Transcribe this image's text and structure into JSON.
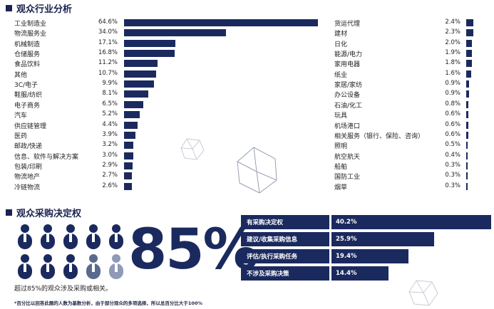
{
  "section1": {
    "title": "观众行业分析"
  },
  "section2": {
    "title": "观众采购决定权"
  },
  "chart_data": [
    {
      "type": "bar",
      "orientation": "horizontal",
      "title": "观众行业分析 (left)",
      "categories": [
        "工业制造业",
        "物流服务业",
        "机械制造",
        "仓储服务",
        "食品饮料",
        "其他",
        "3C/电子",
        "鞋服/纺织",
        "电子商务",
        "汽车",
        "供应链管理",
        "医药",
        "邮政/快递",
        "信息、软件与解决方案",
        "包装/印刷",
        "物流地产",
        "冷链物流"
      ],
      "labels": [
        "64.6%",
        "34.0%",
        "17.1%",
        "16.8%",
        "11.2%",
        "10.7%",
        "9.9%",
        "8.1%",
        "6.5%",
        "5.2%",
        "4.4%",
        "3.9%",
        "3.2%",
        "3.0%",
        "2.9%",
        "2.7%",
        "2.6%"
      ],
      "values": [
        64.6,
        34.0,
        17.1,
        16.8,
        11.2,
        10.7,
        9.9,
        8.1,
        6.5,
        5.2,
        4.4,
        3.9,
        3.2,
        3.0,
        2.9,
        2.7,
        2.6
      ]
    },
    {
      "type": "bar",
      "orientation": "horizontal",
      "title": "观众行业分析 (right)",
      "categories": [
        "货运代理",
        "建材",
        "日化",
        "能源/电力",
        "家用电器",
        "纸业",
        "家居/家纺",
        "办公设备",
        "石油/化工",
        "玩具",
        "机场港口",
        "相关服务（银行、保险、咨询）",
        "照明",
        "航空航天",
        "船舶",
        "国防工业",
        "烟草"
      ],
      "labels": [
        "2.4%",
        "2.3%",
        "2.0%",
        "1.9%",
        "1.8%",
        "1.6%",
        "0.9%",
        "0.9%",
        "0.8%",
        "0.6%",
        "0.6%",
        "0.6%",
        "0.5%",
        "0.4%",
        "0.3%",
        "0.3%",
        "0.3%"
      ],
      "values": [
        2.4,
        2.3,
        2.0,
        1.9,
        1.8,
        1.6,
        0.9,
        0.9,
        0.8,
        0.6,
        0.6,
        0.6,
        0.5,
        0.4,
        0.3,
        0.3,
        0.3
      ]
    },
    {
      "type": "bar",
      "orientation": "horizontal",
      "title": "观众采购决定权",
      "categories": [
        "有采购决定权",
        "建议/收集采购信息",
        "评估/执行采购任务",
        "不涉及采购决策"
      ],
      "labels": [
        "40.2%",
        "25.9%",
        "19.4%",
        "14.4%"
      ],
      "values": [
        40.2,
        25.9,
        19.4,
        14.4
      ]
    }
  ],
  "stat": {
    "big": "85%",
    "caption": "超过85%的观众涉及采购或相关。"
  },
  "people": {
    "total": 10,
    "highlighted": 8,
    "partial": 1,
    "light": 1
  },
  "footnote": "*百分比以回答此题的人数为基数分析，由于部分观众的多项选择，所以总百分比大于100%",
  "colors": {
    "primary": "#1b2a5e",
    "mid": "#5a6a8f",
    "light": "#8f9ab8"
  }
}
